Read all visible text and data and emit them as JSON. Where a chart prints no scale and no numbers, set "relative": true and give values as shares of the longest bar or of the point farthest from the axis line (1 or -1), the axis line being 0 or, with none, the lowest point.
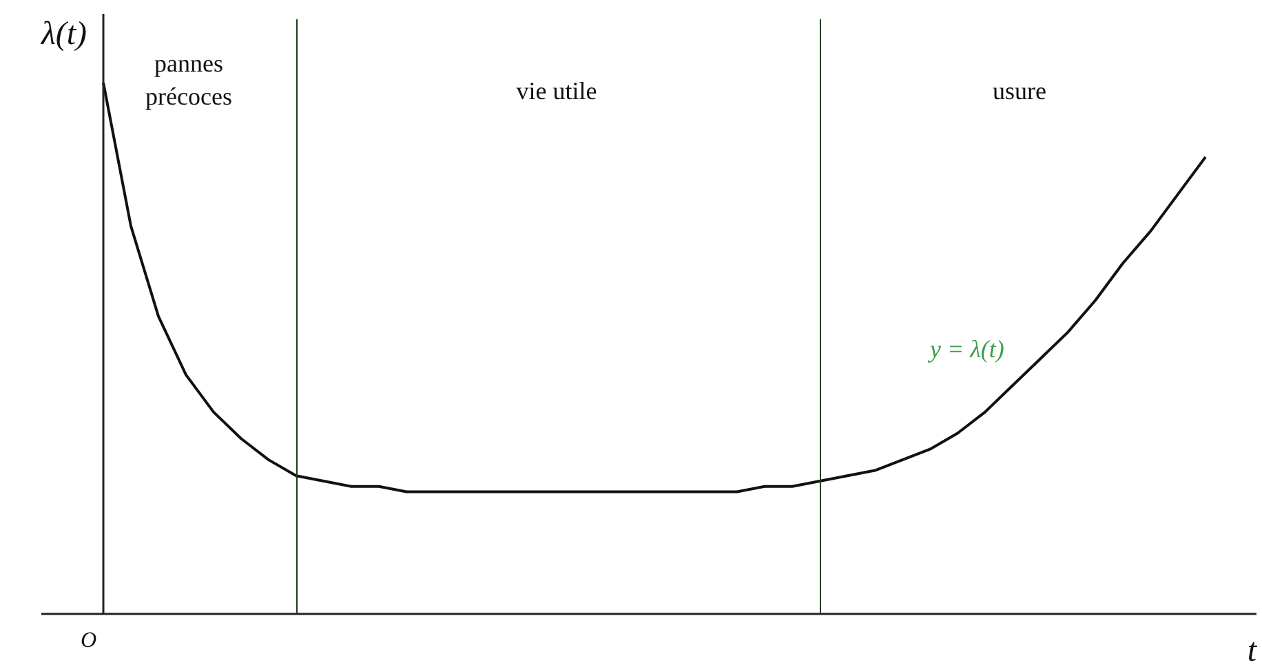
{
  "chart_data": {
    "type": "line",
    "relative": true,
    "ylabel": "λ(t)",
    "xlabel": "t",
    "annotations": [
      "O",
      "pannes précoces",
      "vie utile",
      "usure"
    ],
    "categories": [
      null,
      null,
      null,
      null,
      null,
      null,
      null,
      null,
      null,
      null,
      null,
      null,
      null,
      null,
      null,
      null,
      null,
      null,
      null,
      null,
      null,
      null,
      null,
      null,
      null,
      null,
      null,
      null,
      null,
      null,
      null,
      null,
      null,
      null,
      null,
      null,
      null,
      null,
      null,
      null,
      null
    ],
    "series": [
      {
        "name": "y = λ(t)",
        "color": "#111111",
        "values": [
          1,
          0.73,
          0.56,
          0.45,
          0.38,
          0.33,
          0.29,
          0.26,
          0.25,
          0.24,
          0.24,
          0.23,
          0.23,
          0.23,
          0.23,
          0.23,
          0.23,
          0.23,
          0.23,
          0.23,
          0.23,
          0.23,
          0.23,
          0.23,
          0.24,
          0.24,
          0.25,
          0.26,
          0.27,
          0.29,
          0.31,
          0.34,
          0.38,
          0.43,
          0.48,
          0.53,
          0.59,
          0.66,
          0.72,
          0.79,
          0.86
        ]
      }
    ],
    "legend": false,
    "marker": "none",
    "line_style": "solid"
  }
}
